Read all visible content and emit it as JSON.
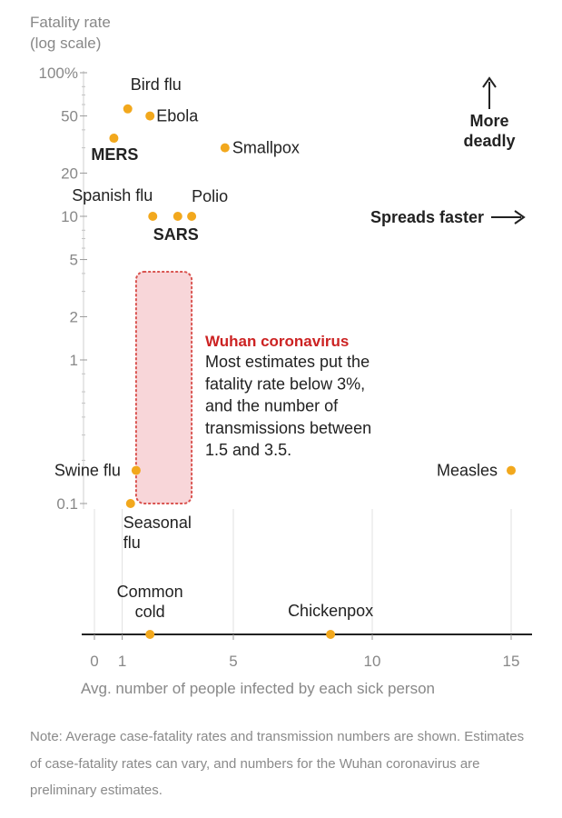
{
  "chart_data": {
    "type": "scatter",
    "ylabel": [
      "Fatality rate",
      "(log scale)"
    ],
    "xlabel": "Avg. number of people infected by each sick person",
    "y_scale": "log",
    "xlim": [
      0,
      15.5
    ],
    "x_ticks": [
      "0",
      "1",
      "5",
      "10",
      "15"
    ],
    "y_ticks": [
      "100%",
      "50",
      "20",
      "10",
      "5",
      "2",
      "1",
      "0.1"
    ],
    "points": [
      {
        "name": "Bird flu",
        "x": 1.2,
        "y": 56,
        "bold": false
      },
      {
        "name": "Ebola",
        "x": 2.0,
        "y": 50,
        "bold": false
      },
      {
        "name": "MERS",
        "x": 0.7,
        "y": 35,
        "bold": true
      },
      {
        "name": "Smallpox",
        "x": 4.7,
        "y": 30,
        "bold": false
      },
      {
        "name": "Spanish flu",
        "x": 2.1,
        "y": 10,
        "bold": false
      },
      {
        "name": "Polio",
        "x": 3.5,
        "y": 10,
        "bold": false
      },
      {
        "name": "SARS",
        "x": 3.0,
        "y": 10,
        "bold": true
      },
      {
        "name": "Swine flu",
        "x": 1.5,
        "y": 0.17,
        "bold": false
      },
      {
        "name": "Measles",
        "x": 15.0,
        "y": 0.17,
        "bold": false
      },
      {
        "name": "Seasonal flu",
        "x": 1.3,
        "y": 0.1,
        "bold": false
      },
      {
        "name": "Common cold",
        "x": 2.0,
        "y": null,
        "bold": false
      },
      {
        "name": "Chickenpox",
        "x": 8.5,
        "y": null,
        "bold": false
      }
    ],
    "highlight": {
      "title": "Wuhan coronavirus",
      "text": [
        "Most estimates put the",
        "fatality rate below 3%,",
        "and the number of",
        "transmissions between",
        "1.5 and 3.5."
      ],
      "x_range": [
        1.5,
        3.5
      ],
      "y_range": [
        0.1,
        3
      ]
    },
    "annotations": {
      "more_deadly": [
        "More",
        "deadly"
      ],
      "spreads_faster": "Spreads faster"
    },
    "colors": {
      "point": "#f2a81d",
      "highlight_fill": "#f7cfd2",
      "highlight_border": "#d9534f",
      "highlight_title": "#cc2222"
    }
  },
  "note": "Note: Average case-fatality rates and transmission numbers are shown. Estimates of case-fatality rates can vary, and numbers for the Wuhan coronavirus are preliminary estimates."
}
